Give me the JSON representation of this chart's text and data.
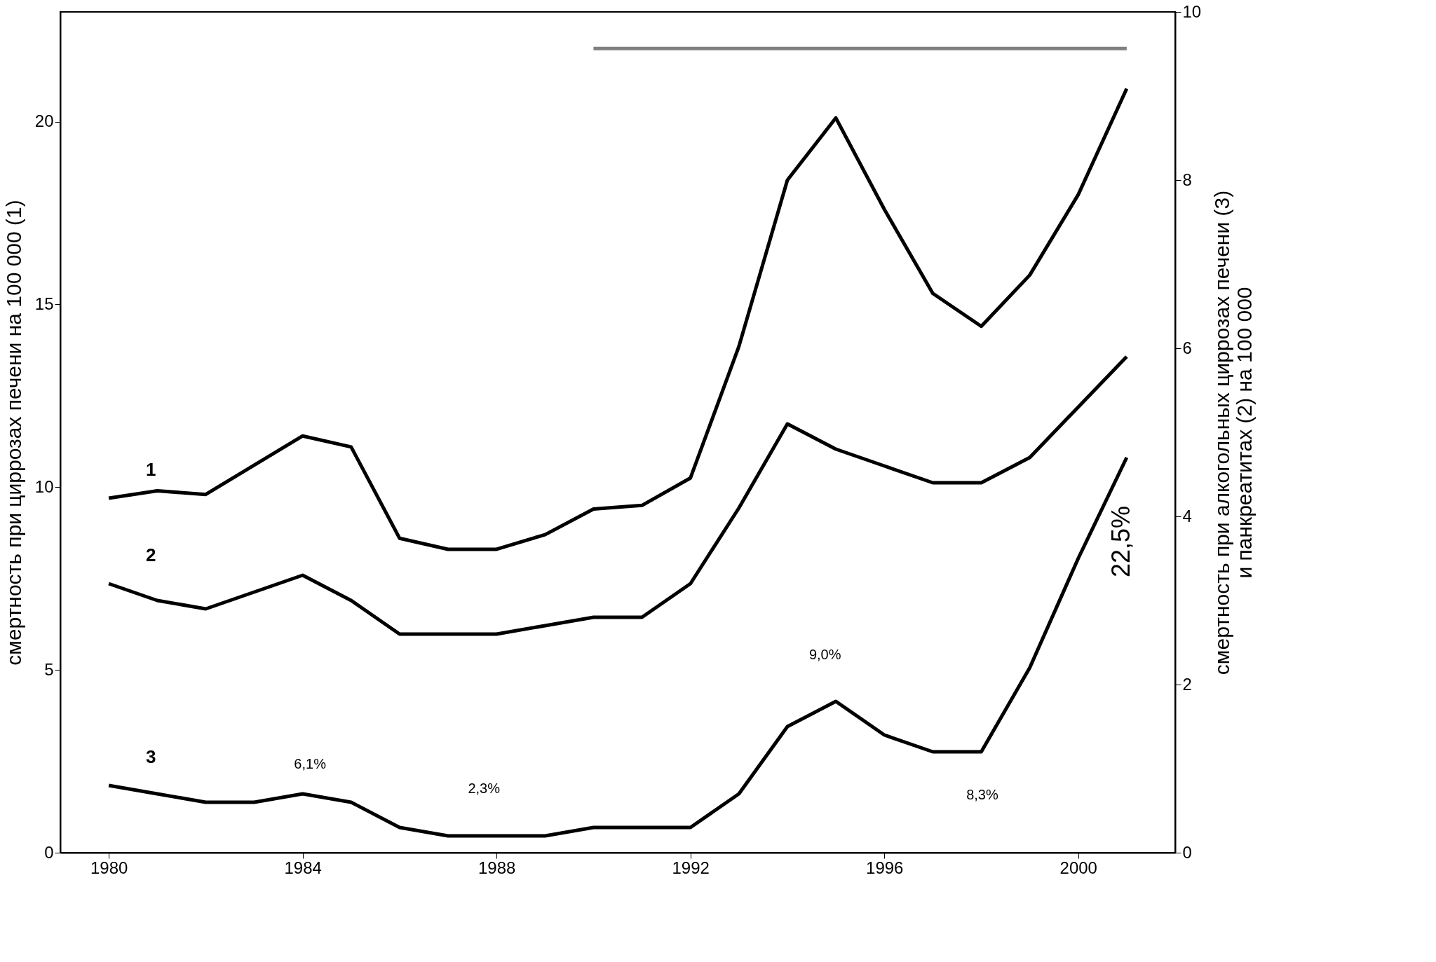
{
  "chart_data": {
    "type": "line",
    "xlabel": null,
    "ylabel": "смертность при циррозах печени на 100 000  (1)",
    "y2label": "смертность при алкогольных циррозах печени  (3)\nи  панкреатитах (2) на 100 000",
    "xlim": [
      1979,
      2002
    ],
    "xticks": [
      1980,
      1984,
      1988,
      1992,
      1996,
      2000
    ],
    "ylim": [
      0,
      23
    ],
    "yticks": [
      0,
      5,
      10,
      15,
      20
    ],
    "y2lim": [
      0,
      10
    ],
    "y2ticks": [
      0,
      2,
      4,
      6,
      8,
      10
    ],
    "grid": false,
    "marker": "none",
    "line_style": "solid",
    "x": [
      1980,
      1981,
      1982,
      1983,
      1984,
      1985,
      1986,
      1987,
      1988,
      1989,
      1990,
      1991,
      1992,
      1993,
      1994,
      1995,
      1996,
      1997,
      1998,
      1999,
      2000,
      2001
    ],
    "series": [
      {
        "name": "1",
        "type": "line",
        "axis": "y",
        "color": "#000000",
        "values": [
          9.7,
          9.9,
          9.8,
          10.6,
          11.4,
          11.1,
          8.6,
          8.3,
          8.3,
          8.7,
          9.4,
          9.5,
          10.25,
          13.85,
          18.4,
          20.1,
          17.6,
          15.3,
          14.4,
          15.8,
          18.0,
          20.9
        ]
      },
      {
        "name": "2",
        "type": "line",
        "axis": "y2",
        "color": "#000000",
        "values": [
          3.2,
          3.0,
          2.9,
          3.1,
          3.3,
          3.0,
          2.6,
          2.6,
          2.6,
          2.7,
          2.8,
          2.8,
          3.2,
          4.1,
          5.1,
          4.8,
          4.6,
          4.4,
          4.4,
          4.7,
          5.3,
          5.9
        ]
      },
      {
        "name": "3",
        "type": "line",
        "axis": "y2",
        "color": "#000000",
        "values": [
          0.8,
          0.7,
          0.6,
          0.6,
          0.7,
          0.6,
          0.3,
          0.2,
          0.2,
          0.2,
          0.3,
          0.3,
          0.3,
          0.7,
          1.5,
          1.8,
          1.4,
          1.2,
          1.2,
          2.2,
          3.5,
          4.7
        ]
      },
      {
        "type": "line",
        "axis": "y",
        "color": "#808080",
        "x": [
          1990,
          2001
        ],
        "values": [
          22,
          22
        ]
      }
    ],
    "annotations": [
      "6,1%",
      "2,3%",
      "9,0%",
      "8,3%",
      "22,5%"
    ]
  }
}
